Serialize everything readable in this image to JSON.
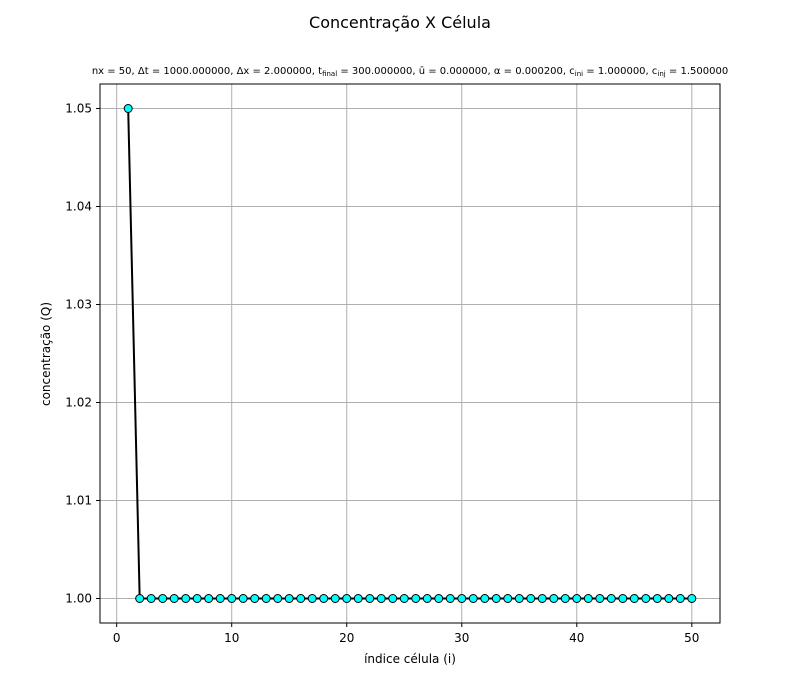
{
  "chart_data": {
    "type": "line",
    "title": "Concentração X Célula",
    "subtitle": {
      "nx": "nx = 50, ",
      "dt": "Δt = 1000.000000, ",
      "dx": "Δx = 2.000000, ",
      "tfinal_base": "t",
      "tfinal_sub": "final",
      "tfinal_value": " = 300.000000, ",
      "u": "ū = 0.000000, ",
      "alpha": "α = 0.000200, ",
      "cini_base": "c",
      "cini_sub": "ini",
      "cini_value": " = 1.000000, ",
      "cinj_base": "c",
      "cinj_sub": "inj",
      "cinj_value": " = 1.500000"
    },
    "xlabel": "índice célula (i)",
    "ylabel": "concentração (Q)",
    "xlim": [
      -1.45,
      52.45
    ],
    "ylim": [
      0.9975,
      1.0525
    ],
    "xticks": [
      0,
      10,
      20,
      30,
      40,
      50
    ],
    "xtick_labels": [
      "0",
      "10",
      "20",
      "30",
      "40",
      "50"
    ],
    "yticks": [
      1.0,
      1.01,
      1.02,
      1.03,
      1.04,
      1.05
    ],
    "ytick_labels": [
      "1.00",
      "1.01",
      "1.02",
      "1.03",
      "1.04",
      "1.05"
    ],
    "grid": true,
    "line_color": "#000000",
    "marker_face_color": "#00ffff",
    "marker_edge_color": "#000000",
    "grid_color": "#b0b0b0",
    "series": [
      {
        "x": [
          1,
          2,
          3,
          4,
          5,
          6,
          7,
          8,
          9,
          10,
          11,
          12,
          13,
          14,
          15,
          16,
          17,
          18,
          19,
          20,
          21,
          22,
          23,
          24,
          25,
          26,
          27,
          28,
          29,
          30,
          31,
          32,
          33,
          34,
          35,
          36,
          37,
          38,
          39,
          40,
          41,
          42,
          43,
          44,
          45,
          46,
          47,
          48,
          49,
          50
        ],
        "y": [
          1.05,
          1.0,
          1.0,
          1.0,
          1.0,
          1.0,
          1.0,
          1.0,
          1.0,
          1.0,
          1.0,
          1.0,
          1.0,
          1.0,
          1.0,
          1.0,
          1.0,
          1.0,
          1.0,
          1.0,
          1.0,
          1.0,
          1.0,
          1.0,
          1.0,
          1.0,
          1.0,
          1.0,
          1.0,
          1.0,
          1.0,
          1.0,
          1.0,
          1.0,
          1.0,
          1.0,
          1.0,
          1.0,
          1.0,
          1.0,
          1.0,
          1.0,
          1.0,
          1.0,
          1.0,
          1.0,
          1.0,
          1.0,
          1.0,
          1.0
        ]
      }
    ]
  }
}
